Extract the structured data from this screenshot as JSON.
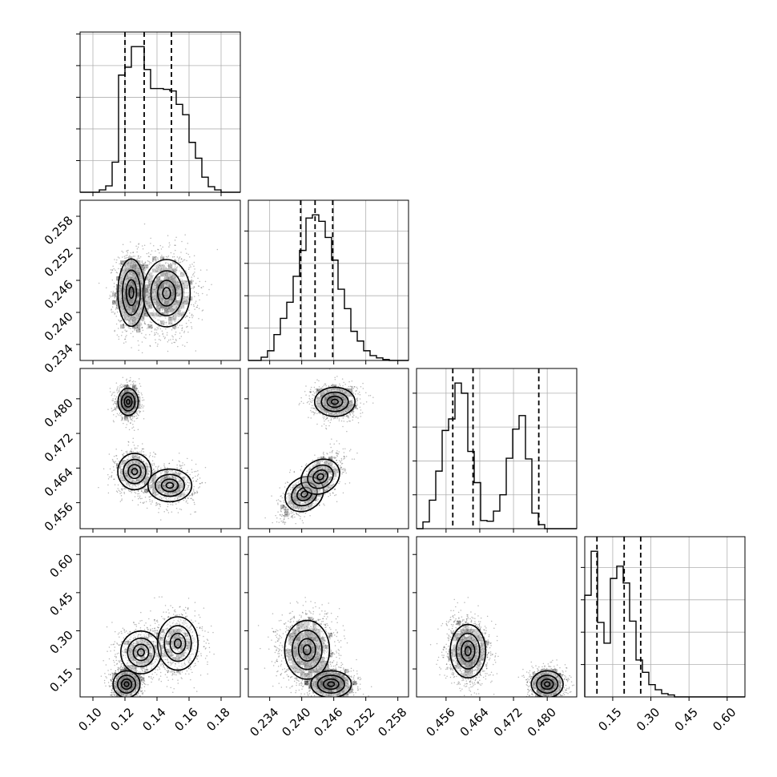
{
  "chart_data": {
    "type": "corner",
    "grid": true,
    "histograms": [
      {
        "param_index": 0,
        "type": "bar",
        "xlim": [
          0.092,
          0.192
        ],
        "bin_edges": [
          0.092,
          0.096,
          0.1,
          0.104,
          0.108,
          0.112,
          0.116,
          0.12,
          0.124,
          0.128,
          0.132,
          0.136,
          0.14,
          0.144,
          0.148,
          0.152,
          0.156,
          0.16,
          0.164,
          0.168,
          0.172,
          0.176,
          0.18,
          0.184,
          0.188,
          0.192
        ],
        "counts": [
          0,
          0,
          0,
          30,
          80,
          380,
          1480,
          1580,
          1840,
          1840,
          1550,
          1310,
          1310,
          1300,
          1280,
          1110,
          980,
          630,
          430,
          190,
          70,
          30,
          0,
          0,
          0
        ],
        "quantiles": [
          0.12,
          0.132,
          0.149
        ]
      },
      {
        "param_index": 1,
        "type": "bar",
        "xlim": [
          0.23,
          0.26
        ],
        "bin_edges": [
          0.23,
          0.2312,
          0.2324,
          0.2336,
          0.2348,
          0.236,
          0.2372,
          0.2384,
          0.2396,
          0.2408,
          0.242,
          0.2432,
          0.2444,
          0.2456,
          0.2468,
          0.248,
          0.2492,
          0.2504,
          0.2516,
          0.2528,
          0.254,
          0.2552,
          0.2564,
          0.2576,
          0.2588,
          0.26
        ],
        "counts": [
          0,
          0,
          50,
          150,
          400,
          650,
          900,
          1300,
          1700,
          2200,
          2250,
          2150,
          1900,
          1550,
          1100,
          800,
          450,
          300,
          150,
          75,
          40,
          15,
          0,
          0,
          0
        ],
        "quantiles": [
          0.2398,
          0.2425,
          0.2458
        ]
      },
      {
        "param_index": 2,
        "type": "bar",
        "xlim": [
          0.449,
          0.487
        ],
        "bin_edges": [
          0.449,
          0.45052,
          0.45204,
          0.45356,
          0.45508,
          0.4566,
          0.45812,
          0.45964,
          0.46116,
          0.46268,
          0.4642,
          0.46572,
          0.46724,
          0.46876,
          0.47028,
          0.4718,
          0.47332,
          0.47484,
          0.47636,
          0.47788,
          0.4794,
          0.48092,
          0.48244,
          0.48396,
          0.48548,
          0.487
        ],
        "counts": [
          0,
          100,
          420,
          850,
          1450,
          1620,
          2150,
          2000,
          1140,
          680,
          120,
          110,
          260,
          500,
          1040,
          1470,
          1670,
          1030,
          230,
          60,
          0,
          0,
          0,
          0,
          0
        ],
        "quantiles": [
          0.4576,
          0.4624,
          0.478
        ]
      },
      {
        "param_index": 3,
        "type": "bar",
        "xlim": [
          0.04,
          0.67
        ],
        "bin_edges": [
          0.04,
          0.0652,
          0.0904,
          0.1156,
          0.1408,
          0.166,
          0.1912,
          0.2164,
          0.2416,
          0.2668,
          0.292,
          0.3172,
          0.3424,
          0.3676,
          0.3928,
          0.418,
          0.4432,
          0.4684,
          0.4936,
          0.5188,
          0.544,
          0.5692,
          0.5944,
          0.6196,
          0.6448,
          0.67
        ],
        "counts": [
          1570,
          2250,
          1150,
          830,
          1830,
          2020,
          1760,
          1170,
          570,
          380,
          190,
          110,
          50,
          30,
          0,
          0,
          0,
          0,
          0,
          0,
          0,
          0,
          0,
          0,
          0
        ],
        "quantiles": [
          0.088,
          0.195,
          0.26
        ]
      }
    ],
    "scatter_panels": [
      {
        "row": 1,
        "col": 0,
        "type": "scatter",
        "xlim": [
          0.092,
          0.192
        ],
        "ylim": [
          0.231,
          0.261
        ],
        "components": [
          {
            "cx": 0.124,
            "cy": 0.2437,
            "sx": 0.004,
            "sy": 0.003,
            "weight": 0.45
          },
          {
            "cx": 0.146,
            "cy": 0.2436,
            "sx": 0.007,
            "sy": 0.003,
            "weight": 0.55
          }
        ]
      },
      {
        "row": 2,
        "col": 0,
        "type": "scatter",
        "xlim": [
          0.092,
          0.192
        ],
        "ylim": [
          0.45,
          0.487
        ],
        "components": [
          {
            "cx": 0.122,
            "cy": 0.4793,
            "sx": 0.003,
            "sy": 0.0015,
            "weight": 0.35
          },
          {
            "cx": 0.126,
            "cy": 0.4632,
            "sx": 0.005,
            "sy": 0.002,
            "weight": 0.3
          },
          {
            "cx": 0.148,
            "cy": 0.46,
            "sx": 0.0065,
            "sy": 0.0018,
            "weight": 0.35
          }
        ]
      },
      {
        "row": 2,
        "col": 1,
        "type": "scatter",
        "xlim": [
          0.23,
          0.26
        ],
        "ylim": [
          0.45,
          0.487
        ],
        "components": [
          {
            "cx": 0.2462,
            "cy": 0.4793,
            "sx": 0.0018,
            "sy": 0.0016,
            "weight": 0.4
          },
          {
            "cx": 0.2405,
            "cy": 0.458,
            "sx": 0.0018,
            "sy": 0.0018,
            "weight": 0.3,
            "corr_slope": 0.55
          },
          {
            "cx": 0.2435,
            "cy": 0.462,
            "sx": 0.0018,
            "sy": 0.0018,
            "weight": 0.3,
            "corr_slope": 0.55
          }
        ]
      },
      {
        "row": 3,
        "col": 0,
        "type": "scatter",
        "xlim": [
          0.092,
          0.192
        ],
        "ylim": [
          0.04,
          0.67
        ],
        "components": [
          {
            "cx": 0.121,
            "cy": 0.09,
            "sx": 0.004,
            "sy": 0.025,
            "weight": 0.35
          },
          {
            "cx": 0.13,
            "cy": 0.215,
            "sx": 0.006,
            "sy": 0.04,
            "weight": 0.3
          },
          {
            "cx": 0.153,
            "cy": 0.25,
            "sx": 0.006,
            "sy": 0.05,
            "weight": 0.35
          }
        ]
      },
      {
        "row": 3,
        "col": 1,
        "type": "scatter",
        "xlim": [
          0.23,
          0.26
        ],
        "ylim": [
          0.04,
          0.67
        ],
        "components": [
          {
            "cx": 0.241,
            "cy": 0.225,
            "sx": 0.002,
            "sy": 0.055,
            "weight": 0.6
          },
          {
            "cx": 0.2455,
            "cy": 0.09,
            "sx": 0.0018,
            "sy": 0.025,
            "weight": 0.4
          }
        ]
      },
      {
        "row": 3,
        "col": 2,
        "type": "scatter",
        "xlim": [
          0.449,
          0.487
        ],
        "ylim": [
          0.04,
          0.67
        ],
        "components": [
          {
            "cx": 0.4612,
            "cy": 0.22,
            "sx": 0.002,
            "sy": 0.05,
            "weight": 0.6
          },
          {
            "cx": 0.48,
            "cy": 0.09,
            "sx": 0.0018,
            "sy": 0.025,
            "weight": 0.4
          }
        ]
      }
    ],
    "xticks": [
      {
        "values": [
          0.1,
          0.12,
          0.14,
          0.16,
          0.18
        ],
        "labels": [
          "0.10",
          "0.12",
          "0.14",
          "0.16",
          "0.18"
        ]
      },
      {
        "values": [
          0.234,
          0.24,
          0.246,
          0.252,
          0.258
        ],
        "labels": [
          "0.234",
          "0.240",
          "0.246",
          "0.252",
          "0.258"
        ]
      },
      {
        "values": [
          0.456,
          0.464,
          0.472,
          0.48
        ],
        "labels": [
          "0.456",
          "0.464",
          "0.472",
          "0.480"
        ]
      },
      {
        "values": [
          0.15,
          0.3,
          0.45,
          0.6
        ],
        "labels": [
          "0.15",
          "0.30",
          "0.45",
          "0.60"
        ]
      }
    ],
    "yticks": {
      "row1": {
        "values": [
          0.234,
          0.24,
          0.246,
          0.252,
          0.258
        ],
        "labels": [
          "0.234",
          "0.240",
          "0.246",
          "0.252",
          "0.258"
        ]
      },
      "row2": {
        "values": [
          0.456,
          0.464,
          0.472,
          0.48
        ],
        "labels": [
          "0.456",
          "0.464",
          "0.472",
          "0.480"
        ]
      },
      "row3": {
        "values": [
          0.15,
          0.3,
          0.45,
          0.6
        ],
        "labels": [
          "0.15",
          "0.30",
          "0.45",
          "0.60"
        ]
      }
    }
  }
}
